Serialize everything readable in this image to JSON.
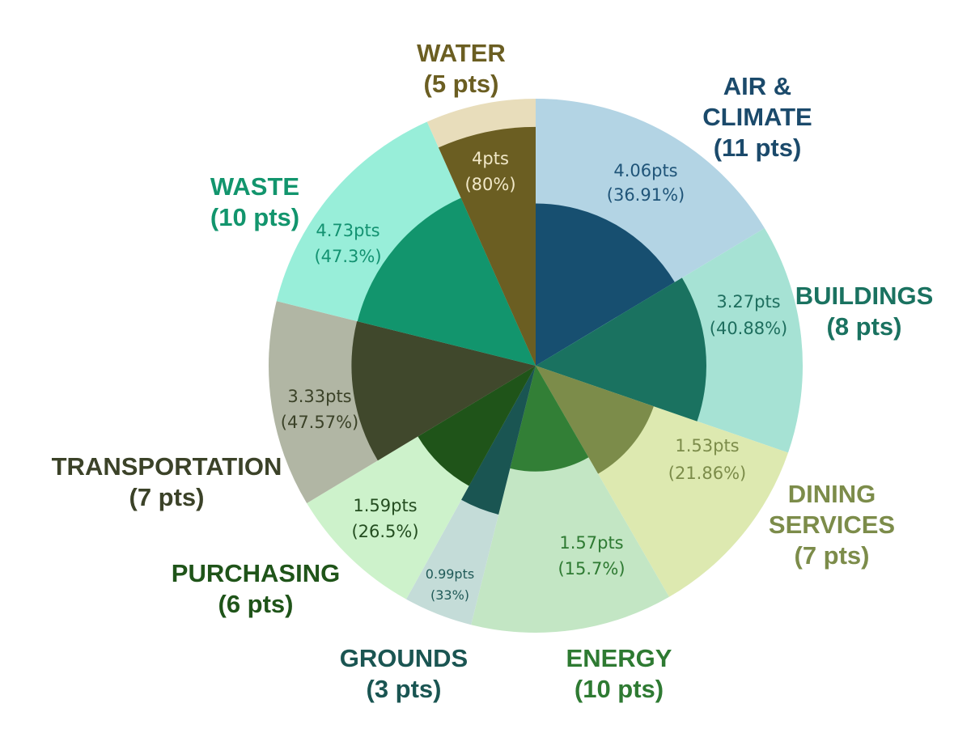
{
  "chart_data": {
    "type": "pie",
    "subtype": "nested-radial",
    "start_angle_deg": 0,
    "direction": "clockwise",
    "categories": [
      {
        "name_lines": [
          "AIR &",
          "CLIMATE"
        ],
        "points_label": "(11 pts)",
        "max_pts": 11,
        "earned_pts": 4.06,
        "value_label": "4.06pts",
        "percent_label": "(36.91%)",
        "outer_color": "#b3d4e4",
        "inner_color": "#174f70",
        "label_color": "#1b4a6b",
        "value_color": "#1f5478"
      },
      {
        "name_lines": [
          "BUILDINGS"
        ],
        "points_label": "(8 pts)",
        "max_pts": 8,
        "earned_pts": 3.27,
        "value_label": "3.27pts",
        "percent_label": "(40.88%)",
        "outer_color": "#a6e2d4",
        "inner_color": "#1a7260",
        "label_color": "#1a7260",
        "value_color": "#1e6e5e"
      },
      {
        "name_lines": [
          "DINING",
          "SERVICES"
        ],
        "points_label": "(7 pts)",
        "max_pts": 7,
        "earned_pts": 1.53,
        "value_label": "1.53pts",
        "percent_label": "(21.86%)",
        "outer_color": "#dde9b0",
        "inner_color": "#7c8c4a",
        "label_color": "#7c8c4a",
        "value_color": "#7c8c4a"
      },
      {
        "name_lines": [
          "ENERGY"
        ],
        "points_label": "(10 pts)",
        "max_pts": 10,
        "earned_pts": 1.57,
        "value_label": "1.57pts",
        "percent_label": "(15.7%)",
        "outer_color": "#c3e6c4",
        "inner_color": "#327f36",
        "label_color": "#2e7a32",
        "value_color": "#2e7a32"
      },
      {
        "name_lines": [
          "GROUNDS"
        ],
        "points_label": "(3 pts)",
        "max_pts": 3,
        "earned_pts": 0.99,
        "value_label": "0.99pts",
        "percent_label": "(33%)",
        "outer_color": "#c4dcd8",
        "inner_color": "#1a5552",
        "label_color": "#1a5552",
        "value_color": "#1f5957"
      },
      {
        "name_lines": [
          "PURCHASING"
        ],
        "points_label": "(6 pts)",
        "max_pts": 6,
        "earned_pts": 1.59,
        "value_label": "1.59pts",
        "percent_label": "(26.5%)",
        "outer_color": "#cdf2cb",
        "inner_color": "#1f5419",
        "label_color": "#1f5419",
        "value_color": "#244d20"
      },
      {
        "name_lines": [
          "TRANSPORTATION"
        ],
        "points_label": "(7 pts)",
        "max_pts": 7,
        "earned_pts": 3.33,
        "value_label": "3.33pts",
        "percent_label": "(47.57%)",
        "outer_color": "#b1b6a4",
        "inner_color": "#40482c",
        "label_color": "#3b4228",
        "value_color": "#3b4228"
      },
      {
        "name_lines": [
          "WASTE"
        ],
        "points_label": "(10 pts)",
        "max_pts": 10,
        "earned_pts": 4.73,
        "value_label": "4.73pts",
        "percent_label": "(47.3%)",
        "outer_color": "#98eed9",
        "inner_color": "#12956d",
        "label_color": "#12956d",
        "value_color": "#139271"
      },
      {
        "name_lines": [
          "WATER"
        ],
        "points_label": "(5 pts)",
        "max_pts": 5,
        "earned_pts": 4,
        "value_label": "4pts",
        "percent_label": "(80%)",
        "outer_color": "#e8ddbb",
        "inner_color": "#6b5e22",
        "label_color": "#6b5e22",
        "value_color": "#f1e8c8"
      }
    ]
  }
}
